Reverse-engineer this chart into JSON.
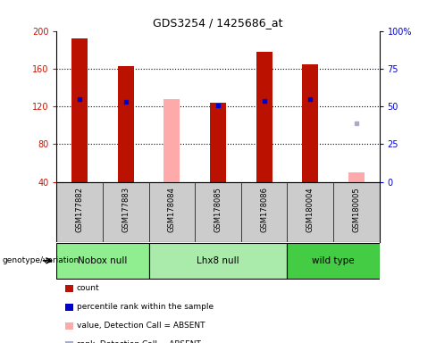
{
  "title": "GDS3254 / 1425686_at",
  "samples": [
    "GSM177882",
    "GSM177883",
    "GSM178084",
    "GSM178085",
    "GSM178086",
    "GSM180004",
    "GSM180005"
  ],
  "groups": [
    {
      "name": "Nobox null",
      "samples": [
        "GSM177882",
        "GSM177883"
      ],
      "color": "#90ee90"
    },
    {
      "name": "Lhx8 null",
      "samples": [
        "GSM178084",
        "GSM178085",
        "GSM178086"
      ],
      "color": "#aaeaaa"
    },
    {
      "name": "wild type",
      "samples": [
        "GSM180004",
        "GSM180005"
      ],
      "color": "#44cc44"
    }
  ],
  "count_values": [
    192,
    163,
    null,
    124,
    178,
    165,
    null
  ],
  "count_absent_values": [
    null,
    null,
    128,
    null,
    null,
    null,
    50
  ],
  "percentile_rank": [
    128,
    125,
    null,
    121,
    126,
    128,
    null
  ],
  "percentile_rank_absent": [
    null,
    null,
    null,
    null,
    null,
    null,
    102
  ],
  "ylim_left": [
    40,
    200
  ],
  "ylim_right": [
    0,
    100
  ],
  "yticks_left": [
    40,
    80,
    120,
    160,
    200
  ],
  "yticks_right": [
    0,
    25,
    50,
    75,
    100
  ],
  "bar_width": 0.35,
  "count_color": "#bb1100",
  "count_absent_color": "#ffaaaa",
  "rank_color": "#0000cc",
  "rank_absent_color": "#aaaacc",
  "background_color": "#ffffff",
  "sample_bg_color": "#cccccc",
  "legend_items": [
    {
      "label": "count",
      "color": "#bb1100"
    },
    {
      "label": "percentile rank within the sample",
      "color": "#0000cc"
    },
    {
      "label": "value, Detection Call = ABSENT",
      "color": "#ffaaaa"
    },
    {
      "label": "rank, Detection Call = ABSENT",
      "color": "#aaaacc"
    }
  ]
}
